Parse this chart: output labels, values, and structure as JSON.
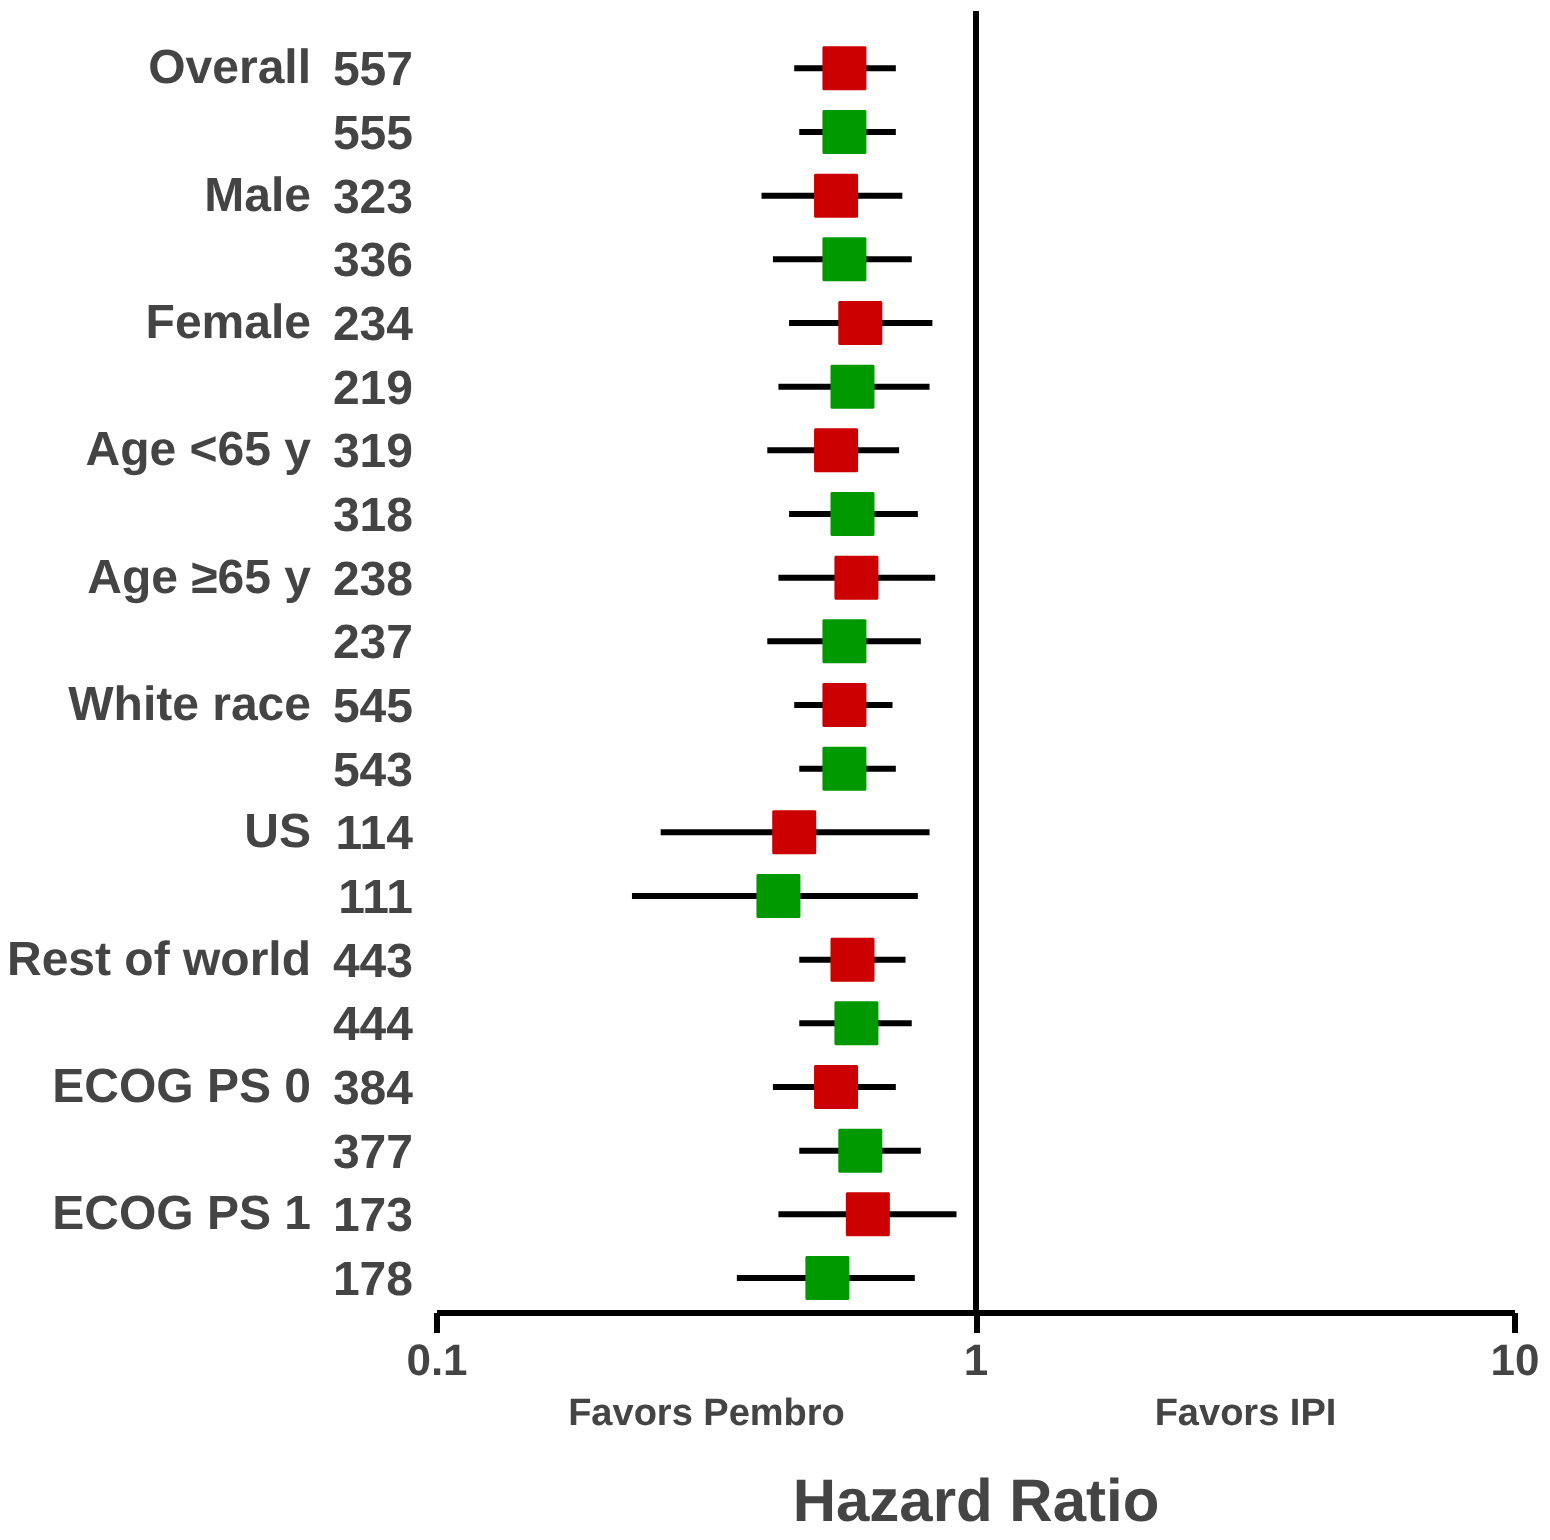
{
  "chart_data": {
    "type": "scatter",
    "orientation": "horizontal",
    "log": "x",
    "xlim": [
      0.1,
      10
    ],
    "xticks": [
      0.1,
      1,
      10
    ],
    "xlabel": "Hazard Ratio",
    "marker": "square",
    "grid": false,
    "categories": [
      "Overall",
      null,
      "Male",
      null,
      "Female",
      null,
      "Age <65 y",
      null,
      "Age ≥65 y",
      null,
      "White race",
      null,
      "US",
      null,
      "Rest of world",
      null,
      "ECOG PS 0",
      null,
      "ECOG PS 1",
      null
    ],
    "ref_lines": [
      {
        "axis": "x",
        "value": 1,
        "color": "#000000"
      }
    ],
    "series": [
      {
        "color": "#cc0000",
        "values": [
          0.57,
          null,
          0.55,
          null,
          0.61,
          null,
          0.55,
          null,
          0.6,
          null,
          0.57,
          null,
          0.46,
          null,
          0.59,
          null,
          0.55,
          null,
          0.63,
          null
        ],
        "errors": [
          [
            0.46,
            0.71
          ],
          null,
          [
            0.4,
            0.73
          ],
          null,
          [
            0.45,
            0.83
          ],
          null,
          [
            0.41,
            0.72
          ],
          null,
          [
            0.43,
            0.84
          ],
          null,
          [
            0.46,
            0.7
          ],
          null,
          [
            0.26,
            0.82
          ],
          null,
          [
            0.47,
            0.74
          ],
          null,
          [
            0.42,
            0.71
          ],
          null,
          [
            0.43,
            0.92
          ],
          null
        ]
      },
      {
        "color": "#009900",
        "values": [
          null,
          0.57,
          null,
          0.57,
          null,
          0.59,
          null,
          0.59,
          null,
          0.57,
          null,
          0.57,
          null,
          0.43,
          null,
          0.6,
          null,
          0.61,
          null,
          0.53
        ],
        "errors": [
          null,
          [
            0.47,
            0.71
          ],
          null,
          [
            0.42,
            0.76
          ],
          null,
          [
            0.43,
            0.82
          ],
          null,
          [
            0.45,
            0.78
          ],
          null,
          [
            0.41,
            0.79
          ],
          null,
          [
            0.47,
            0.71
          ],
          null,
          [
            0.23,
            0.78
          ],
          null,
          [
            0.47,
            0.76
          ],
          null,
          [
            0.47,
            0.79
          ],
          null,
          [
            0.36,
            0.77
          ]
        ]
      }
    ],
    "annotations": [
      "557",
      "555",
      "323",
      "336",
      "234",
      "219",
      "319",
      "318",
      "238",
      "237",
      "545",
      "543",
      "114",
      "111",
      "443",
      "444",
      "384",
      "377",
      "173",
      "178",
      "Favors Pembro",
      "Favors IPI"
    ]
  }
}
